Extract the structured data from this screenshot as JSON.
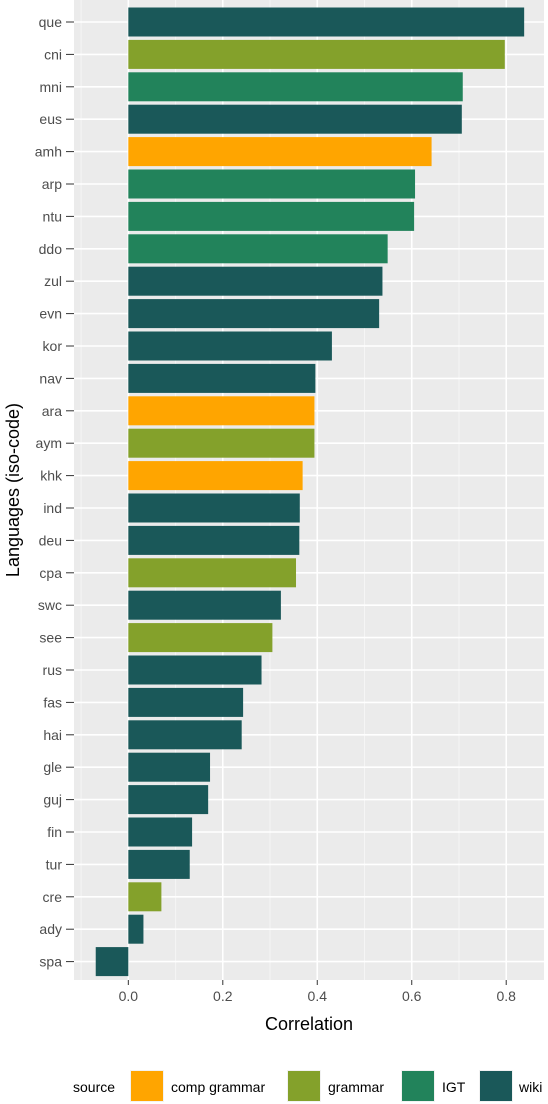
{
  "chart_data": {
    "type": "bar",
    "orientation": "horizontal",
    "xlabel": "Correlation",
    "ylabel": "Languages (iso-code)",
    "xlim": [
      -0.115,
      0.88
    ],
    "xticks": [
      "0.0",
      "0.2",
      "0.4",
      "0.6",
      "0.8"
    ],
    "xtick_values": [
      0.0,
      0.2,
      0.4,
      0.6,
      0.8
    ],
    "grid": true,
    "legend": {
      "title": "source",
      "placement": "bottom",
      "items": [
        {
          "label": "comp grammar",
          "color": "#FFA500"
        },
        {
          "label": "grammar",
          "color": "#84A12B"
        },
        {
          "label": "IGT",
          "color": "#22835B"
        },
        {
          "label": "wiki",
          "color": "#1A5859"
        }
      ]
    },
    "bars": [
      {
        "category": "que",
        "value": 0.838,
        "source": "wiki"
      },
      {
        "category": "cni",
        "value": 0.797,
        "source": "grammar"
      },
      {
        "category": "mni",
        "value": 0.708,
        "source": "IGT"
      },
      {
        "category": "eus",
        "value": 0.706,
        "source": "wiki"
      },
      {
        "category": "amh",
        "value": 0.642,
        "source": "comp grammar"
      },
      {
        "category": "arp",
        "value": 0.607,
        "source": "IGT"
      },
      {
        "category": "ntu",
        "value": 0.605,
        "source": "IGT"
      },
      {
        "category": "ddo",
        "value": 0.549,
        "source": "IGT"
      },
      {
        "category": "zul",
        "value": 0.538,
        "source": "wiki"
      },
      {
        "category": "evn",
        "value": 0.531,
        "source": "wiki"
      },
      {
        "category": "kor",
        "value": 0.431,
        "source": "wiki"
      },
      {
        "category": "nav",
        "value": 0.396,
        "source": "wiki"
      },
      {
        "category": "ara",
        "value": 0.394,
        "source": "comp grammar"
      },
      {
        "category": "aym",
        "value": 0.394,
        "source": "grammar"
      },
      {
        "category": "khk",
        "value": 0.369,
        "source": "comp grammar"
      },
      {
        "category": "ind",
        "value": 0.363,
        "source": "wiki"
      },
      {
        "category": "deu",
        "value": 0.362,
        "source": "wiki"
      },
      {
        "category": "cpa",
        "value": 0.355,
        "source": "grammar"
      },
      {
        "category": "swc",
        "value": 0.323,
        "source": "wiki"
      },
      {
        "category": "see",
        "value": 0.305,
        "source": "grammar"
      },
      {
        "category": "rus",
        "value": 0.282,
        "source": "wiki"
      },
      {
        "category": "fas",
        "value": 0.243,
        "source": "wiki"
      },
      {
        "category": "hai",
        "value": 0.24,
        "source": "wiki"
      },
      {
        "category": "gle",
        "value": 0.173,
        "source": "wiki"
      },
      {
        "category": "guj",
        "value": 0.169,
        "source": "wiki"
      },
      {
        "category": "fin",
        "value": 0.135,
        "source": "wiki"
      },
      {
        "category": "tur",
        "value": 0.13,
        "source": "wiki"
      },
      {
        "category": "cre",
        "value": 0.07,
        "source": "grammar"
      },
      {
        "category": "ady",
        "value": 0.032,
        "source": "wiki"
      },
      {
        "category": "spa",
        "value": -0.069,
        "source": "wiki"
      }
    ]
  }
}
